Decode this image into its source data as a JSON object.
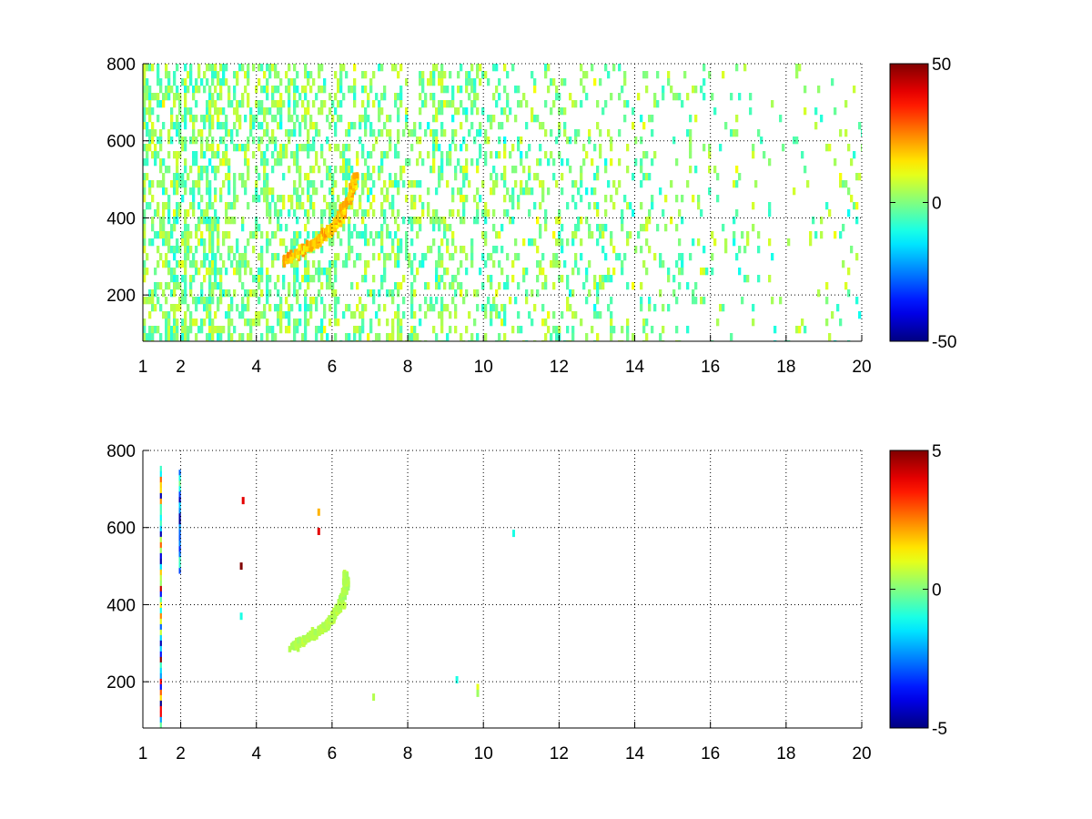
{
  "chart_data": [
    {
      "type": "heatmap",
      "title": "",
      "xlabel": "",
      "ylabel": "",
      "xlim": [
        1,
        20
      ],
      "ylim": [
        80,
        800
      ],
      "xticks": [
        1,
        2,
        4,
        6,
        8,
        10,
        12,
        14,
        16,
        18,
        20
      ],
      "yticks": [
        200,
        400,
        600,
        800
      ],
      "grid": true,
      "colormap": "jet",
      "clim": [
        -50,
        50
      ],
      "colorbar_ticks": [
        -50,
        0,
        50
      ],
      "colorbar_position": "right",
      "background": "#ffffff",
      "features": [
        {
          "kind": "dense scattered noise",
          "x_range": [
            1,
            20
          ],
          "y_range": [
            80,
            800
          ],
          "value_range": [
            -15,
            15
          ]
        },
        {
          "kind": "curved ridge",
          "points": [
            [
              4.7,
              295
            ],
            [
              5.2,
              325
            ],
            [
              5.6,
              350
            ],
            [
              5.9,
              375
            ],
            [
              6.1,
              400
            ],
            [
              6.3,
              440
            ],
            [
              6.5,
              480
            ],
            [
              6.6,
              520
            ]
          ],
          "value": 18
        }
      ]
    },
    {
      "type": "heatmap",
      "title": "",
      "xlabel": "",
      "ylabel": "",
      "xlim": [
        1,
        20
      ],
      "ylim": [
        80,
        800
      ],
      "xticks": [
        1,
        2,
        4,
        6,
        8,
        10,
        12,
        14,
        16,
        18,
        20
      ],
      "yticks": [
        200,
        400,
        600,
        800
      ],
      "grid": true,
      "colormap": "jet",
      "clim": [
        -5,
        5
      ],
      "colorbar_ticks": [
        -5,
        0,
        5
      ],
      "colorbar_position": "right",
      "background": "#ffffff",
      "features": [
        {
          "kind": "curved ridge",
          "points": [
            [
              4.9,
              300
            ],
            [
              5.3,
              320
            ],
            [
              5.7,
              345
            ],
            [
              6.0,
              375
            ],
            [
              6.2,
              410
            ],
            [
              6.3,
              450
            ],
            [
              6.35,
              490
            ]
          ],
          "value": 0.5
        },
        {
          "kind": "vertical streak",
          "x": 1.45,
          "y_range": [
            90,
            760
          ],
          "value_range": [
            -5,
            5
          ]
        },
        {
          "kind": "vertical streak",
          "x": 1.95,
          "y_range": [
            490,
            750
          ],
          "value_range": [
            -5,
            0
          ]
        },
        {
          "kind": "spot",
          "x": 3.65,
          "y": 670,
          "value": 4
        },
        {
          "kind": "spot",
          "x": 3.6,
          "y": 500,
          "value": 5
        },
        {
          "kind": "spot",
          "x": 3.6,
          "y": 370,
          "value": -1
        },
        {
          "kind": "spot",
          "x": 5.65,
          "y": 640,
          "value": 2
        },
        {
          "kind": "spot",
          "x": 5.65,
          "y": 590,
          "value": 4
        },
        {
          "kind": "spot",
          "x": 7.1,
          "y": 160,
          "value": 0.5
        },
        {
          "kind": "spot",
          "x": 9.3,
          "y": 205,
          "value": -1
        },
        {
          "kind": "spot",
          "x": 9.85,
          "y": 185,
          "value": 1
        },
        {
          "kind": "spot",
          "x": 9.85,
          "y": 170,
          "value": 0.3
        },
        {
          "kind": "spot",
          "x": 10.8,
          "y": 585,
          "value": -1
        }
      ]
    }
  ]
}
